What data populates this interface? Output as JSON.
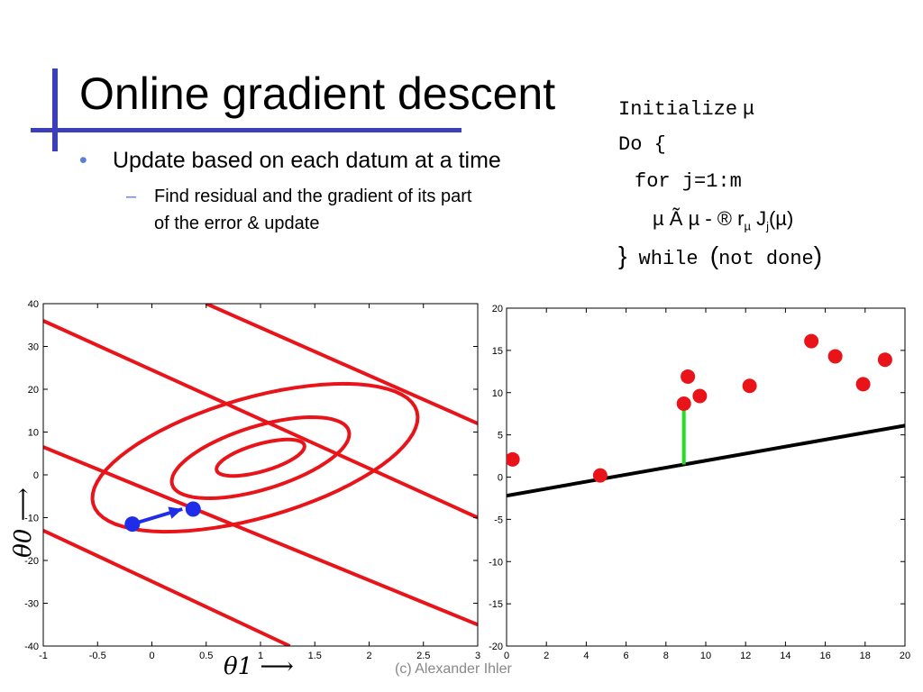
{
  "slide": {
    "title": "Online gradient descent",
    "bullet1": "Update based on each datum at a time",
    "bullet1_marker": "•",
    "bullet2_line1": "Find residual and the gradient of its part",
    "bullet2_line2": "of the error & update",
    "bullet2_marker": "–",
    "credit": "(c) Alexander Ihler",
    "colors": {
      "accent_bar": "#3b3fb8",
      "bullet": "#5b7fd6",
      "contour": "#e8141a",
      "param_point": "#1f2de8",
      "residual": "#22dd22"
    }
  },
  "code": {
    "l1_kw": "Initialize",
    "l1_var": "µ",
    "l2": "Do {",
    "l3": "for j=1:m",
    "l4_a": "µ Ã µ - ® r",
    "l4_sub1": "µ",
    "l4_b": " J",
    "l4_sub2": "j",
    "l4_c": "(µ)",
    "l5_brace": "}",
    "l5_while": " while ",
    "l5_open": "(",
    "l5_cond": "not done",
    "l5_close": ")"
  },
  "chart_data": [
    {
      "type": "line",
      "subtype": "contour",
      "xlabel": "θ1 ⟶",
      "ylabel": "θ0 ⟶",
      "xlim": [
        -1,
        3
      ],
      "ylim": [
        -40,
        40
      ],
      "xticks": [
        "-1",
        "-0.5",
        "0",
        "0.5",
        "1",
        "1.5",
        "2",
        "2.5",
        "3"
      ],
      "yticks": [
        "40",
        "30",
        "20",
        "10",
        "0",
        "-10",
        "-20",
        "-30",
        "-40"
      ],
      "contours": [
        {
          "type": "ellipse",
          "cx": 1.0,
          "cy": 4.0,
          "rx": 0.42,
          "ry": 3.2,
          "angle_deg": -16
        },
        {
          "type": "ellipse",
          "cx": 1.0,
          "cy": 4.0,
          "rx": 0.85,
          "ry": 7.4,
          "angle_deg": -17
        },
        {
          "type": "ellipse",
          "cx": 0.95,
          "cy": 4.0,
          "rx": 1.55,
          "ry": 14.0,
          "angle_deg": -16
        },
        {
          "type": "line",
          "x1": -1.0,
          "y1": 36.0,
          "x2": 3.0,
          "y2": -10.0
        },
        {
          "type": "line",
          "x1": -1.0,
          "y1": 6.5,
          "x2": 3.0,
          "y2": -35.0
        },
        {
          "type": "line",
          "x1": 0.5,
          "y1": 40.0,
          "x2": 3.0,
          "y2": 12.0
        },
        {
          "type": "line",
          "x1": -1.0,
          "y1": -13.0,
          "x2": 1.27,
          "y2": -40.0
        }
      ],
      "points": [
        {
          "x": -0.18,
          "y": -11.5
        },
        {
          "x": 0.38,
          "y": -8.0
        }
      ],
      "arrow": {
        "from": [
          -0.18,
          -11.5
        ],
        "to": [
          0.28,
          -8.0
        ]
      }
    },
    {
      "type": "scatter",
      "xlim": [
        0,
        20
      ],
      "ylim": [
        -20,
        20
      ],
      "xticks": [
        "0",
        "2",
        "4",
        "6",
        "8",
        "10",
        "12",
        "14",
        "16",
        "18",
        "20"
      ],
      "yticks": [
        "20",
        "15",
        "10",
        "5",
        "0",
        "-5",
        "-10",
        "-15",
        "-20"
      ],
      "points": [
        {
          "x": 0.3,
          "y": 2.1
        },
        {
          "x": 4.7,
          "y": 0.2
        },
        {
          "x": 8.9,
          "y": 8.7
        },
        {
          "x": 9.1,
          "y": 11.9
        },
        {
          "x": 9.7,
          "y": 9.6
        },
        {
          "x": 12.2,
          "y": 10.8
        },
        {
          "x": 15.3,
          "y": 16.1
        },
        {
          "x": 16.5,
          "y": 14.3
        },
        {
          "x": 17.9,
          "y": 11.0
        },
        {
          "x": 19.0,
          "y": 13.9
        }
      ],
      "fit_line": {
        "x1": 0.0,
        "y1": -2.2,
        "x2": 20.0,
        "y2": 6.1
      },
      "residual": {
        "x": 8.9,
        "y_from": 8.7,
        "y_to": 1.5
      }
    }
  ]
}
